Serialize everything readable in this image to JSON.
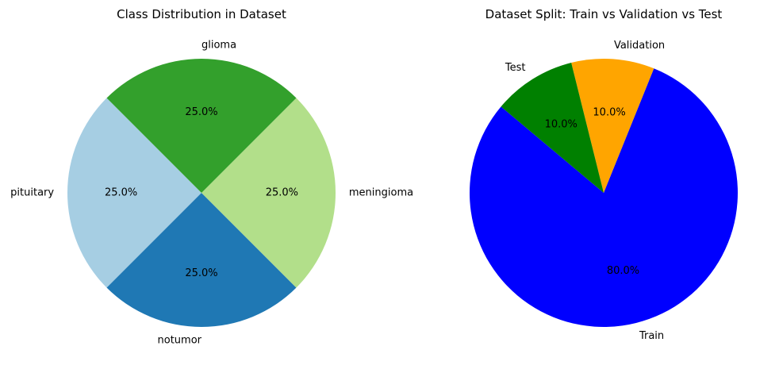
{
  "chart_data": [
    {
      "type": "pie",
      "title": "Class Distribution in Dataset",
      "categories": [
        "pituitary",
        "notumor",
        "meningioma",
        "glioma"
      ],
      "values": [
        25.0,
        25.0,
        25.0,
        25.0
      ],
      "value_labels": [
        "25.0%",
        "25.0%",
        "25.0%",
        "25.0%"
      ],
      "colors": [
        "#a6cee3",
        "#1f78b4",
        "#b2df8a",
        "#33a02c"
      ],
      "start_angle_deg": 135,
      "direction": "counterclockwise",
      "legend": "none"
    },
    {
      "type": "pie",
      "title": "Dataset Split: Train vs Validation vs Test",
      "categories": [
        "Train",
        "Validation",
        "Test"
      ],
      "values": [
        80.0,
        10.0,
        10.0
      ],
      "value_labels": [
        "80.0%",
        "10.0%",
        "10.0%"
      ],
      "colors": [
        "#0000ff",
        "#ffa500",
        "#008000"
      ],
      "start_angle_deg": 140,
      "direction": "counterclockwise",
      "legend": "none"
    }
  ]
}
